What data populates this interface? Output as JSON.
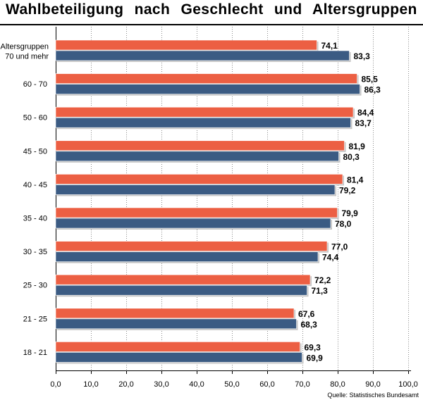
{
  "chart_data": {
    "type": "bar",
    "orientation": "horizontal",
    "title": "Wahlbeteiligung nach Geschlecht und Altersgruppen",
    "categories": [
      [
        "Altersgruppen",
        "70 und mehr"
      ],
      [
        "60 - 70"
      ],
      [
        "50 - 60"
      ],
      [
        "45 - 50"
      ],
      [
        "40 - 45"
      ],
      [
        "35 - 40"
      ],
      [
        "30 - 35"
      ],
      [
        "25 - 30"
      ],
      [
        "21 - 25"
      ],
      [
        "18 - 21"
      ]
    ],
    "series": [
      {
        "color": "#ec5f43",
        "values": [
          74.1,
          85.5,
          84.4,
          81.9,
          81.4,
          79.9,
          77.0,
          72.2,
          67.6,
          69.3
        ],
        "labels": [
          "74,1",
          "85,5",
          "84,4",
          "81,9",
          "81,4",
          "79,9",
          "77,0",
          "72,2",
          "67,6",
          "69,3"
        ]
      },
      {
        "color": "#3b5b83",
        "values": [
          83.3,
          86.3,
          83.7,
          80.3,
          79.2,
          78.0,
          74.4,
          71.3,
          68.3,
          69.9
        ],
        "labels": [
          "83,3",
          "86,3",
          "83,7",
          "80,3",
          "79,2",
          "78,0",
          "74,4",
          "71,3",
          "68,3",
          "69,9"
        ]
      }
    ],
    "xlim": [
      0,
      100
    ],
    "xticks": [
      0,
      10,
      20,
      30,
      40,
      50,
      60,
      70,
      80,
      90,
      100
    ],
    "xtick_labels": [
      "0,0",
      "10,0",
      "20,0",
      "30,0",
      "40,0",
      "50,0",
      "60,0",
      "70,0",
      "80,0",
      "90,0",
      "100,0"
    ],
    "grid": true,
    "legend": "none"
  },
  "source": "Quelle: Statistisches Bundesamt"
}
